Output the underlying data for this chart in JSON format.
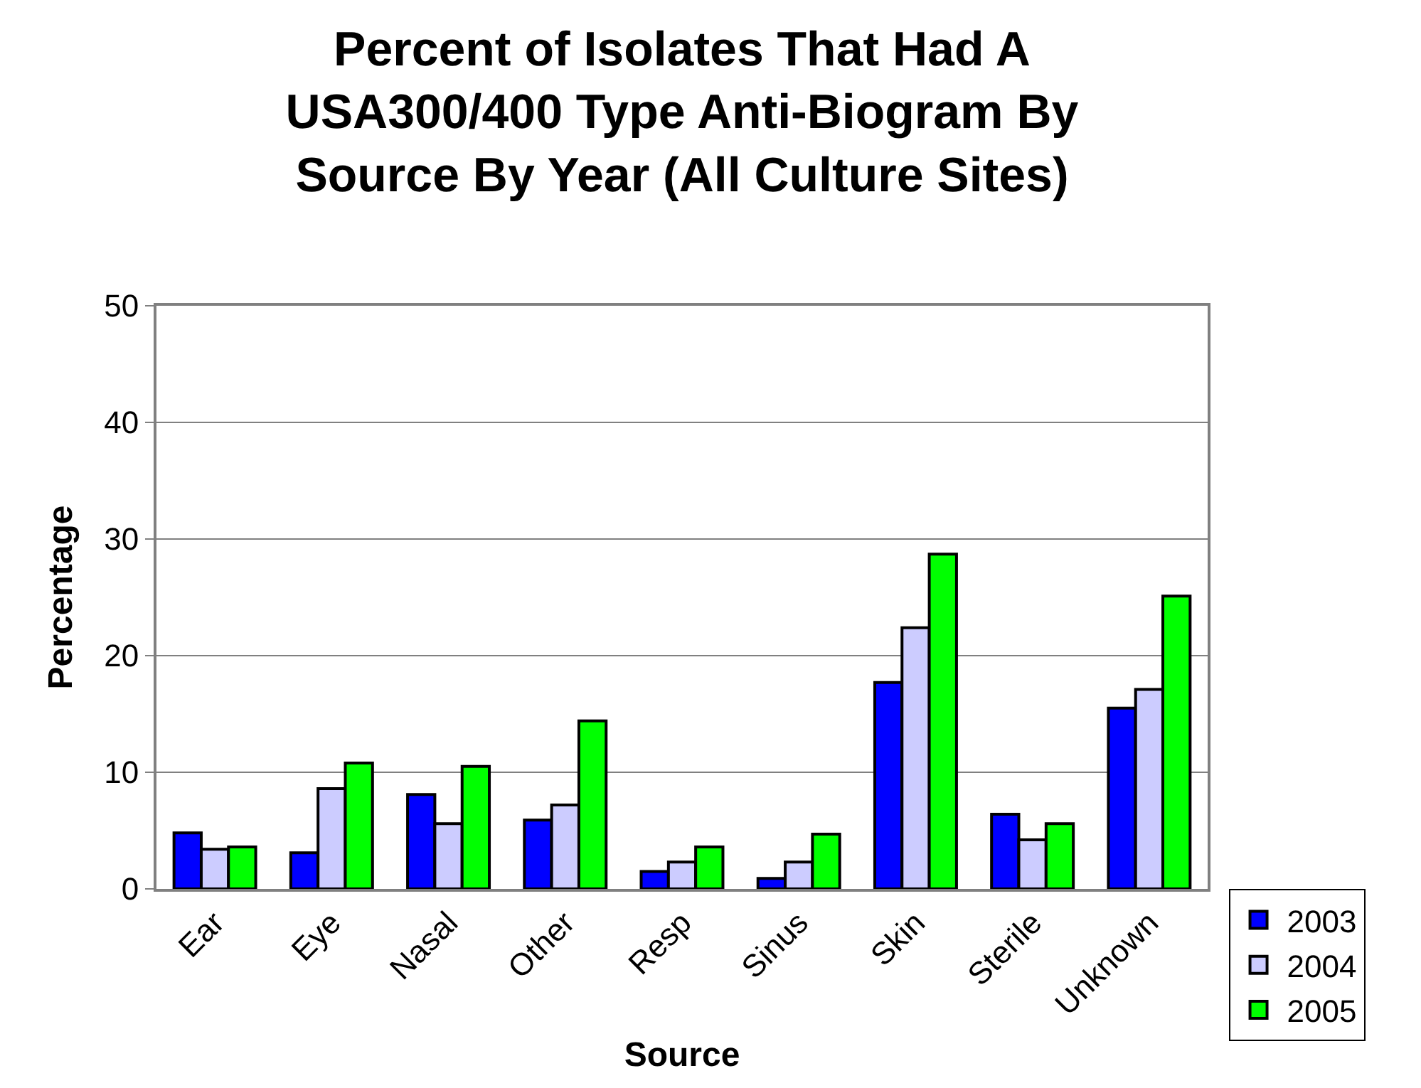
{
  "chart_data": {
    "type": "bar",
    "title": "Percent of Isolates That Had A USA300/400 Type Anti-Biogram By Source By Year (All Culture Sites)",
    "xlabel": "Source",
    "ylabel": "Percentage",
    "categories": [
      "Ear",
      "Eye",
      "Nasal",
      "Other",
      "Resp",
      "Sinus",
      "Skin",
      "Sterile",
      "Unknown"
    ],
    "series": [
      {
        "name": "2003",
        "color": "#0000ff",
        "values": [
          4.8,
          3.1,
          8.1,
          5.9,
          1.5,
          0.9,
          17.7,
          6.4,
          15.5
        ]
      },
      {
        "name": "2004",
        "color": "#ccccff",
        "values": [
          3.4,
          8.6,
          5.6,
          7.2,
          2.3,
          2.3,
          22.4,
          4.2,
          17.1
        ]
      },
      {
        "name": "2005",
        "color": "#00ff00",
        "values": [
          3.6,
          10.8,
          10.5,
          14.4,
          3.6,
          4.7,
          28.7,
          5.6,
          25.1
        ]
      }
    ],
    "ylim": [
      0,
      50
    ],
    "yticks": [
      0,
      10,
      20,
      30,
      40,
      50
    ],
    "grid": "y",
    "legend": "bottom right"
  }
}
